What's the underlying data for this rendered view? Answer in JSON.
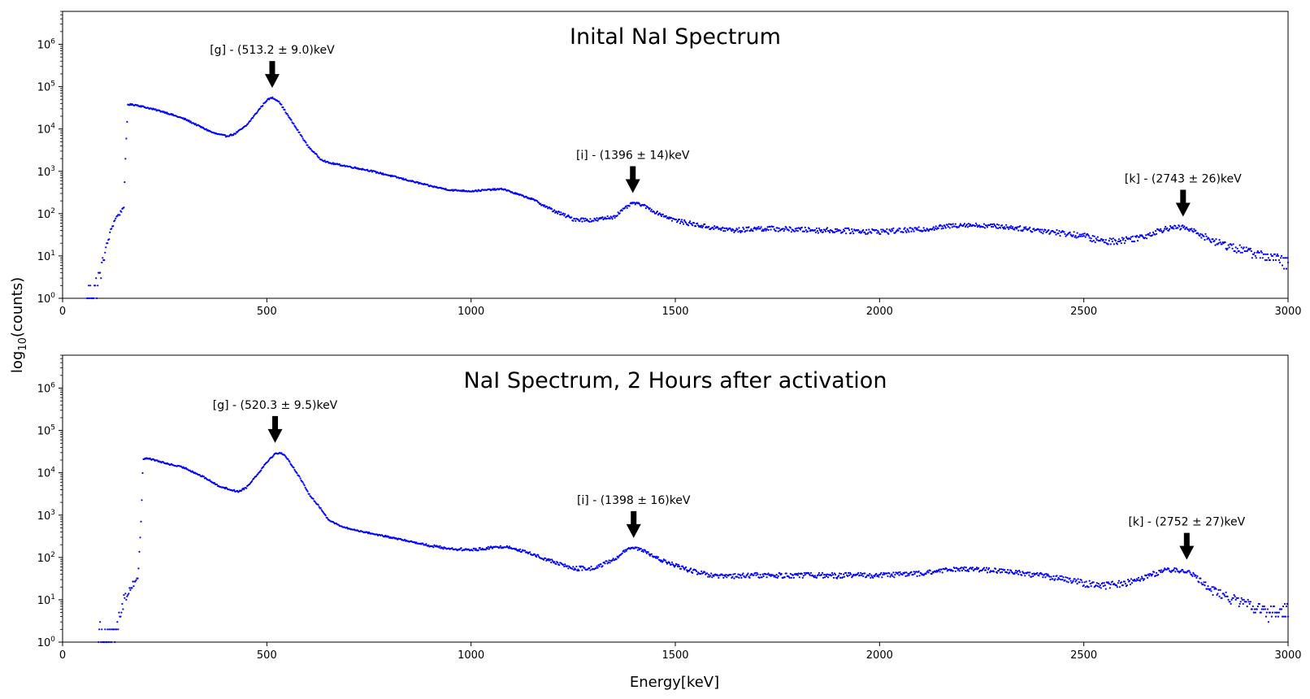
{
  "figure": {
    "ylabel_main": "log",
    "ylabel_sub": "10",
    "ylabel_tail": "(counts)",
    "xlabel": "Energy[keV]"
  },
  "chart_data": [
    {
      "type": "scatter",
      "title": "Inital NaI Spectrum",
      "xlim": [
        0,
        3000
      ],
      "ylim": [
        1,
        6000000
      ],
      "yscale": "log",
      "xticks": [
        "0",
        "500",
        "1000",
        "1500",
        "2000",
        "2500",
        "3000"
      ],
      "yticks": [
        {
          "base": "10",
          "exp": "0"
        },
        {
          "base": "10",
          "exp": "1"
        },
        {
          "base": "10",
          "exp": "2"
        },
        {
          "base": "10",
          "exp": "3"
        },
        {
          "base": "10",
          "exp": "4"
        },
        {
          "base": "10",
          "exp": "5"
        },
        {
          "base": "10",
          "exp": "6"
        }
      ],
      "color": "#0000ff",
      "series_points": [
        [
          60,
          1
        ],
        [
          80,
          2
        ],
        [
          90,
          3
        ],
        [
          100,
          9
        ],
        [
          110,
          20
        ],
        [
          120,
          45
        ],
        [
          130,
          80
        ],
        [
          140,
          100
        ],
        [
          150,
          150
        ],
        [
          155,
          3600
        ],
        [
          160,
          38000
        ],
        [
          180,
          37000
        ],
        [
          200,
          33000
        ],
        [
          250,
          25000
        ],
        [
          300,
          17000
        ],
        [
          340,
          11000
        ],
        [
          370,
          8000
        ],
        [
          400,
          6800
        ],
        [
          420,
          7500
        ],
        [
          450,
          12000
        ],
        [
          480,
          28000
        ],
        [
          500,
          48000
        ],
        [
          513,
          55000
        ],
        [
          530,
          45000
        ],
        [
          550,
          22000
        ],
        [
          580,
          8000
        ],
        [
          600,
          4000
        ],
        [
          630,
          2000
        ],
        [
          650,
          1600
        ],
        [
          700,
          1300
        ],
        [
          750,
          1050
        ],
        [
          800,
          800
        ],
        [
          850,
          600
        ],
        [
          900,
          450
        ],
        [
          950,
          360
        ],
        [
          1000,
          340
        ],
        [
          1050,
          370
        ],
        [
          1080,
          380
        ],
        [
          1100,
          320
        ],
        [
          1150,
          220
        ],
        [
          1200,
          120
        ],
        [
          1250,
          75
        ],
        [
          1300,
          70
        ],
        [
          1350,
          85
        ],
        [
          1380,
          140
        ],
        [
          1396,
          180
        ],
        [
          1420,
          160
        ],
        [
          1450,
          110
        ],
        [
          1500,
          70
        ],
        [
          1550,
          55
        ],
        [
          1600,
          45
        ],
        [
          1650,
          40
        ],
        [
          1700,
          45
        ],
        [
          1800,
          42
        ],
        [
          1900,
          40
        ],
        [
          2000,
          38
        ],
        [
          2100,
          42
        ],
        [
          2200,
          55
        ],
        [
          2300,
          50
        ],
        [
          2400,
          40
        ],
        [
          2500,
          30
        ],
        [
          2550,
          22
        ],
        [
          2600,
          24
        ],
        [
          2650,
          30
        ],
        [
          2700,
          45
        ],
        [
          2743,
          48
        ],
        [
          2780,
          35
        ],
        [
          2820,
          22
        ],
        [
          2860,
          17
        ],
        [
          2900,
          13
        ],
        [
          2950,
          10
        ],
        [
          3000,
          7
        ]
      ],
      "annotations": [
        {
          "text": "[g] - (513.2 ± 9.0)keV",
          "x": 513.2,
          "y": 55000
        },
        {
          "text": "[i] - (1396 ± 14)keV",
          "x": 1396,
          "y": 180
        },
        {
          "text": "[k] - (2743 ± 26)keV",
          "x": 2743,
          "y": 50
        }
      ]
    },
    {
      "type": "scatter",
      "title": "NaI Spectrum, 2 Hours after activation",
      "xlim": [
        0,
        3000
      ],
      "ylim": [
        1,
        6000000
      ],
      "yscale": "log",
      "xticks": [
        "0",
        "500",
        "1000",
        "1500",
        "2000",
        "2500",
        "3000"
      ],
      "yticks": [
        {
          "base": "10",
          "exp": "0"
        },
        {
          "base": "10",
          "exp": "1"
        },
        {
          "base": "10",
          "exp": "2"
        },
        {
          "base": "10",
          "exp": "3"
        },
        {
          "base": "10",
          "exp": "4"
        },
        {
          "base": "10",
          "exp": "5"
        },
        {
          "base": "10",
          "exp": "6"
        }
      ],
      "color": "#0000ff",
      "series_points": [
        [
          88,
          2
        ],
        [
          125,
          1
        ],
        [
          130,
          2
        ],
        [
          140,
          5
        ],
        [
          150,
          10
        ],
        [
          160,
          15
        ],
        [
          170,
          22
        ],
        [
          185,
          35
        ],
        [
          193,
          1100
        ],
        [
          197,
          21000
        ],
        [
          210,
          22000
        ],
        [
          250,
          17000
        ],
        [
          300,
          13000
        ],
        [
          350,
          7500
        ],
        [
          380,
          5000
        ],
        [
          410,
          4000
        ],
        [
          430,
          3600
        ],
        [
          450,
          4500
        ],
        [
          480,
          10000
        ],
        [
          500,
          18000
        ],
        [
          520,
          28000
        ],
        [
          535,
          30000
        ],
        [
          550,
          22000
        ],
        [
          580,
          8000
        ],
        [
          600,
          3500
        ],
        [
          630,
          1500
        ],
        [
          650,
          800
        ],
        [
          680,
          550
        ],
        [
          700,
          480
        ],
        [
          750,
          380
        ],
        [
          800,
          300
        ],
        [
          850,
          240
        ],
        [
          900,
          190
        ],
        [
          950,
          160
        ],
        [
          1000,
          150
        ],
        [
          1050,
          170
        ],
        [
          1080,
          180
        ],
        [
          1100,
          170
        ],
        [
          1150,
          120
        ],
        [
          1200,
          80
        ],
        [
          1250,
          55
        ],
        [
          1300,
          55
        ],
        [
          1350,
          90
        ],
        [
          1380,
          150
        ],
        [
          1398,
          170
        ],
        [
          1420,
          150
        ],
        [
          1450,
          100
        ],
        [
          1500,
          65
        ],
        [
          1550,
          45
        ],
        [
          1600,
          35
        ],
        [
          1700,
          38
        ],
        [
          1800,
          38
        ],
        [
          1900,
          38
        ],
        [
          2000,
          38
        ],
        [
          2100,
          42
        ],
        [
          2200,
          55
        ],
        [
          2300,
          48
        ],
        [
          2400,
          38
        ],
        [
          2500,
          25
        ],
        [
          2550,
          22
        ],
        [
          2600,
          25
        ],
        [
          2650,
          35
        ],
        [
          2700,
          50
        ],
        [
          2752,
          50
        ],
        [
          2780,
          30
        ],
        [
          2820,
          16
        ],
        [
          2860,
          11
        ],
        [
          2900,
          8
        ],
        [
          2950,
          5
        ],
        [
          3000,
          6
        ]
      ],
      "annotations": [
        {
          "text": "[g] - (520.3 ± 9.5)keV",
          "x": 520.3,
          "y": 30000
        },
        {
          "text": "[i] - (1398 ± 16)keV",
          "x": 1398,
          "y": 170
        },
        {
          "text": "[k] - (2752 ± 27)keV",
          "x": 2752,
          "y": 52
        }
      ]
    }
  ]
}
